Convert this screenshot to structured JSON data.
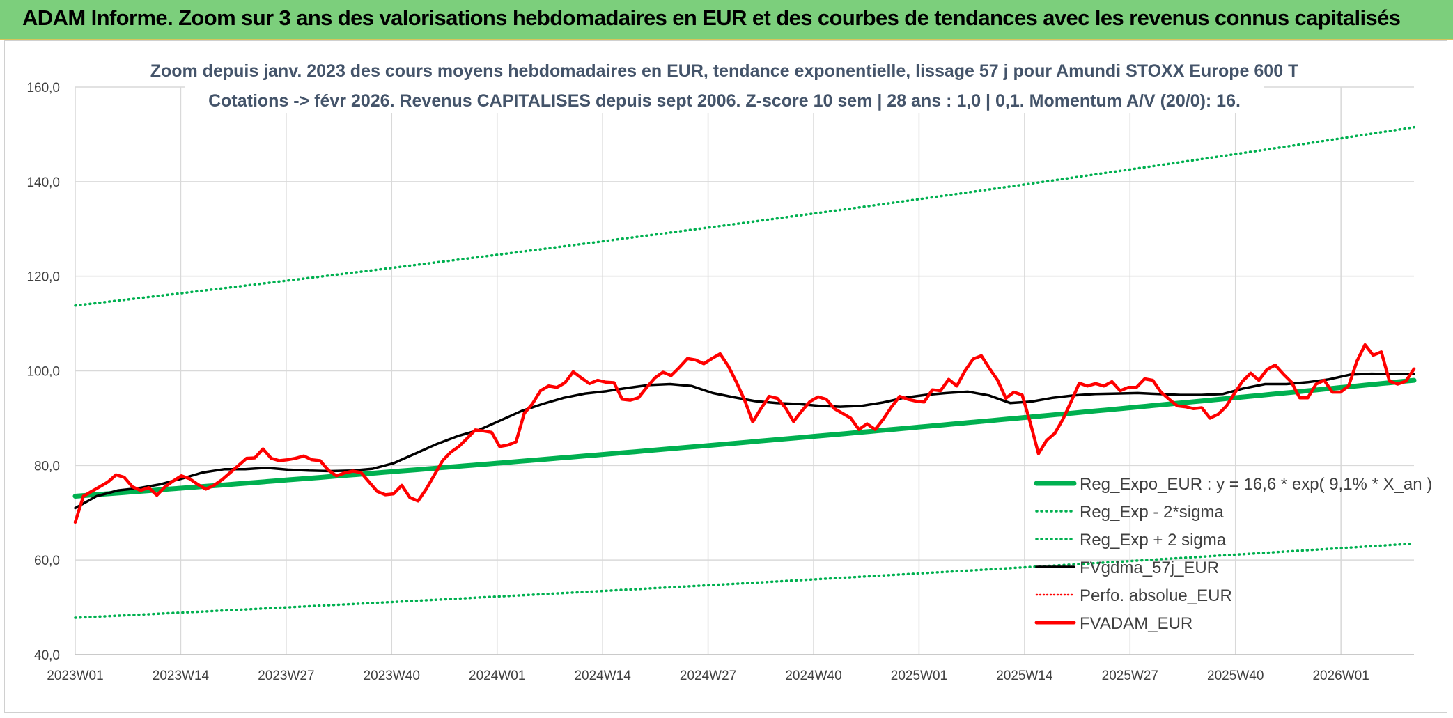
{
  "header": {
    "title": "ADAM Informe. Zoom sur 3 ans des valorisations hebdomadaires en EUR et des courbes de tendances avec les revenus connus capitalisés"
  },
  "colors": {
    "banner": "#7ccf7c",
    "reg_expo": "#00b050",
    "sigma": "#00b050",
    "fvgdma": "#000000",
    "perfo": "#ff0000",
    "fvadam": "#ff0000",
    "grid": "#d9d9d9"
  },
  "chart_data": {
    "type": "line",
    "title_lines": [
      "Zoom depuis janv. 2023 des cours moyens hebdomadaires en EUR, tendance exponentielle, lissage 57 j pour Amundi STOXX Europe 600 T",
      "Cotations -> févr 2026. Revenus CAPITALISES depuis sept 2006. Z-score 10 sem | 28 ans : 1,0 | 0,1. Momentum A/V (20/0): 16."
    ],
    "ylim": [
      40,
      160
    ],
    "y_ticks": [
      "160,0",
      "140,0",
      "120,0",
      "100,0",
      "80,0",
      "60,0",
      "40,0"
    ],
    "y_tick_values": [
      160,
      140,
      120,
      100,
      80,
      60,
      40
    ],
    "x_ticks": [
      "2023W01",
      "2023W14",
      "2023W27",
      "2023W40",
      "2024W01",
      "2024W14",
      "2024W27",
      "2024W40",
      "2025W01",
      "2025W14",
      "2025W27",
      "2025W40",
      "2026W01"
    ],
    "x_tick_index": [
      0,
      13,
      26,
      39,
      52,
      65,
      78,
      91,
      104,
      117,
      130,
      143,
      156
    ],
    "n_weeks": 165,
    "legend": [
      {
        "label": "Reg_Expo_EUR : y = 16,6 * exp( 9,1% *  X_an )",
        "style": "thick-green"
      },
      {
        "label": "Reg_Exp - 2*sigma",
        "style": "dotted-green"
      },
      {
        "label": "Reg_Exp + 2 sigma",
        "style": "dotted-green"
      },
      {
        "label": "FVgdma_57j_EUR",
        "style": "black"
      },
      {
        "label": "Perfo. absolue_EUR",
        "style": "dotted-red"
      },
      {
        "label": "FVADAM_EUR",
        "style": "red"
      }
    ],
    "series": [
      {
        "name": "Reg_Expo_EUR",
        "type": "exp",
        "start": 73.5,
        "end": 98.0
      },
      {
        "name": "Reg_Exp - 2*sigma",
        "type": "exp",
        "start": 47.8,
        "end": 63.5
      },
      {
        "name": "Reg_Exp + 2 sigma",
        "type": "exp",
        "start": 113.8,
        "end": 151.5
      },
      {
        "name": "FVgdma_57j_EUR",
        "points": [
          [
            0,
            71
          ],
          [
            5,
            73.5
          ],
          [
            10,
            74.7
          ],
          [
            15,
            75.2
          ],
          [
            20,
            76
          ],
          [
            25,
            77.2
          ],
          [
            30,
            78.5
          ],
          [
            35,
            79.2
          ],
          [
            40,
            79.2
          ],
          [
            45,
            79.5
          ],
          [
            50,
            79.1
          ],
          [
            55,
            78.9
          ],
          [
            60,
            78.8
          ],
          [
            65,
            78.9
          ],
          [
            70,
            79.3
          ],
          [
            75,
            80.5
          ],
          [
            80,
            82.5
          ],
          [
            85,
            84.5
          ],
          [
            90,
            86.2
          ],
          [
            95,
            87.5
          ],
          [
            100,
            89.5
          ],
          [
            105,
            91.5
          ],
          [
            110,
            93
          ],
          [
            115,
            94.3
          ],
          [
            120,
            95.2
          ],
          [
            125,
            95.7
          ],
          [
            130,
            96.4
          ],
          [
            135,
            97
          ],
          [
            140,
            97.2
          ],
          [
            145,
            96.8
          ],
          [
            150,
            95.3
          ],
          [
            155,
            94.4
          ],
          [
            160,
            93.6
          ],
          [
            165,
            93.2
          ],
          [
            170,
            93
          ],
          [
            175,
            92.6
          ],
          [
            180,
            92.4
          ],
          [
            185,
            92.6
          ],
          [
            190,
            93.3
          ],
          [
            195,
            94.3
          ],
          [
            200,
            94.9
          ],
          [
            205,
            95.3
          ],
          [
            210,
            95.6
          ],
          [
            215,
            94.8
          ],
          [
            220,
            93.2
          ],
          [
            225,
            93.5
          ],
          [
            230,
            94.3
          ],
          [
            235,
            94.8
          ],
          [
            240,
            95.1
          ],
          [
            245,
            95.2
          ],
          [
            250,
            95.3
          ],
          [
            255,
            95.1
          ],
          [
            260,
            94.9
          ],
          [
            265,
            94.9
          ],
          [
            270,
            95.1
          ],
          [
            275,
            96.3
          ],
          [
            280,
            97.2
          ],
          [
            285,
            97.2
          ],
          [
            290,
            97.6
          ],
          [
            295,
            98.2
          ],
          [
            300,
            99.2
          ],
          [
            305,
            99.4
          ],
          [
            310,
            99.3
          ],
          [
            315,
            99.3
          ]
        ]
      },
      {
        "name": "FVADAM_EUR",
        "points": [
          [
            0,
            68
          ],
          [
            2,
            73.5
          ],
          [
            4,
            74.5
          ],
          [
            6,
            75.5
          ],
          [
            8,
            76.5
          ],
          [
            10,
            78
          ],
          [
            12,
            77.5
          ],
          [
            14,
            75.5
          ],
          [
            16,
            74.7
          ],
          [
            18,
            75.3
          ],
          [
            20,
            73.7
          ],
          [
            22,
            75.5
          ],
          [
            24,
            76.7
          ],
          [
            26,
            77.8
          ],
          [
            28,
            77.2
          ],
          [
            30,
            76
          ],
          [
            32,
            75
          ],
          [
            34,
            75.8
          ],
          [
            36,
            77
          ],
          [
            38,
            78.5
          ],
          [
            40,
            80
          ],
          [
            42,
            81.5
          ],
          [
            44,
            81.6
          ],
          [
            46,
            83.5
          ],
          [
            48,
            81.5
          ],
          [
            50,
            81
          ],
          [
            52,
            81.2
          ],
          [
            54,
            81.5
          ],
          [
            56,
            82
          ],
          [
            58,
            81.2
          ],
          [
            60,
            81
          ],
          [
            62,
            79
          ],
          [
            64,
            77.8
          ],
          [
            66,
            78.4
          ],
          [
            68,
            78.8
          ],
          [
            70,
            78.5
          ],
          [
            72,
            76.5
          ],
          [
            74,
            74.5
          ],
          [
            76,
            73.8
          ],
          [
            78,
            74
          ],
          [
            80,
            75.8
          ],
          [
            82,
            73.2
          ],
          [
            84,
            72.5
          ],
          [
            86,
            75
          ],
          [
            88,
            78
          ],
          [
            90,
            81
          ],
          [
            92,
            82.8
          ],
          [
            94,
            84
          ],
          [
            96,
            85.7
          ],
          [
            98,
            87.5
          ],
          [
            100,
            87.3
          ],
          [
            102,
            87
          ],
          [
            104,
            84
          ],
          [
            106,
            84.3
          ],
          [
            108,
            85
          ],
          [
            110,
            91
          ],
          [
            112,
            93
          ],
          [
            114,
            95.8
          ],
          [
            116,
            96.8
          ],
          [
            118,
            96.5
          ],
          [
            120,
            97.5
          ],
          [
            122,
            99.8
          ],
          [
            124,
            98.5
          ],
          [
            126,
            97.3
          ],
          [
            128,
            98
          ],
          [
            130,
            97.6
          ],
          [
            132,
            97.5
          ],
          [
            134,
            94
          ],
          [
            136,
            93.8
          ],
          [
            138,
            94.3
          ],
          [
            140,
            96.5
          ],
          [
            142,
            98.5
          ],
          [
            144,
            99.7
          ],
          [
            146,
            99
          ],
          [
            148,
            100.7
          ],
          [
            150,
            102.6
          ],
          [
            152,
            102.3
          ],
          [
            154,
            101.5
          ],
          [
            156,
            102.6
          ],
          [
            158,
            103.6
          ],
          [
            160,
            101
          ],
          [
            162,
            97.6
          ],
          [
            164,
            93.8
          ],
          [
            166,
            89.2
          ],
          [
            168,
            92
          ],
          [
            170,
            94.6
          ],
          [
            172,
            94.2
          ],
          [
            174,
            92.2
          ],
          [
            176,
            89.3
          ],
          [
            178,
            91.5
          ],
          [
            180,
            93.5
          ],
          [
            182,
            94.5
          ],
          [
            184,
            94
          ],
          [
            186,
            92
          ],
          [
            188,
            91
          ],
          [
            190,
            90
          ],
          [
            192,
            87.6
          ],
          [
            194,
            88.8
          ],
          [
            196,
            87.6
          ],
          [
            198,
            89.8
          ],
          [
            200,
            92.4
          ],
          [
            202,
            94.6
          ],
          [
            204,
            94
          ],
          [
            206,
            93.6
          ],
          [
            208,
            93.4
          ],
          [
            210,
            96
          ],
          [
            212,
            95.8
          ],
          [
            214,
            98.2
          ],
          [
            216,
            96.8
          ],
          [
            218,
            100
          ],
          [
            220,
            102.5
          ],
          [
            222,
            103.2
          ],
          [
            224,
            100.5
          ],
          [
            226,
            98
          ],
          [
            228,
            94.2
          ],
          [
            230,
            95.5
          ],
          [
            232,
            94.9
          ],
          [
            234,
            89
          ],
          [
            236,
            82.5
          ],
          [
            238,
            85.3
          ],
          [
            240,
            86.8
          ],
          [
            242,
            89.8
          ],
          [
            244,
            93.5
          ],
          [
            246,
            97.4
          ],
          [
            248,
            96.8
          ],
          [
            250,
            97.3
          ],
          [
            252,
            96.8
          ],
          [
            254,
            97.7
          ],
          [
            256,
            95.8
          ],
          [
            258,
            96.5
          ],
          [
            260,
            96.5
          ],
          [
            262,
            98.3
          ],
          [
            264,
            98
          ],
          [
            266,
            95.5
          ],
          [
            268,
            94
          ],
          [
            270,
            92.6
          ],
          [
            272,
            92.4
          ],
          [
            274,
            92
          ],
          [
            276,
            92.2
          ],
          [
            278,
            90
          ],
          [
            280,
            90.8
          ],
          [
            282,
            92.5
          ],
          [
            284,
            95.2
          ],
          [
            286,
            97.8
          ],
          [
            288,
            99.5
          ],
          [
            290,
            98
          ],
          [
            292,
            100.3
          ],
          [
            294,
            101.2
          ],
          [
            296,
            99.3
          ],
          [
            298,
            97.6
          ],
          [
            300,
            94.3
          ],
          [
            302,
            94.3
          ],
          [
            304,
            97.2
          ],
          [
            306,
            98
          ],
          [
            308,
            95.5
          ],
          [
            310,
            95.5
          ],
          [
            312,
            96.8
          ],
          [
            314,
            102
          ],
          [
            316,
            105.5
          ],
          [
            318,
            103.3
          ],
          [
            320,
            104
          ],
          [
            322,
            97.8
          ],
          [
            324,
            97.2
          ],
          [
            326,
            97.8
          ],
          [
            328,
            100.4
          ]
        ]
      }
    ]
  }
}
